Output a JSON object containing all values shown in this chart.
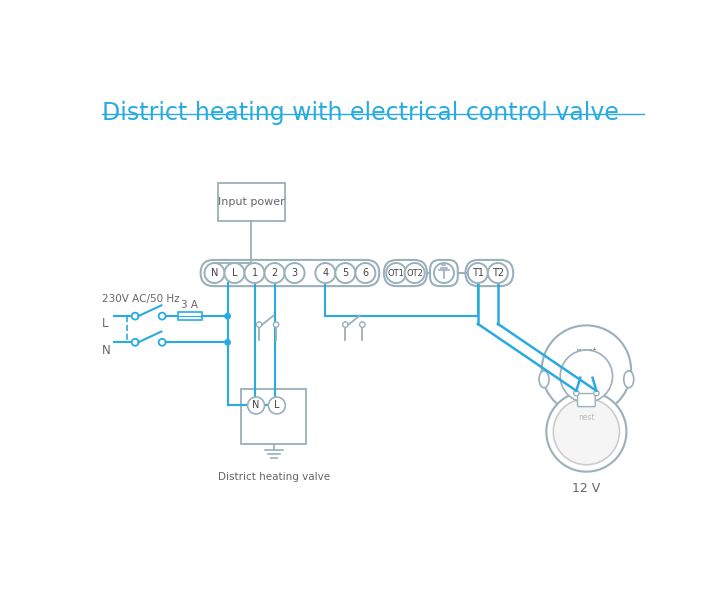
{
  "title": "District heating with electrical control valve",
  "title_color": "#29abe2",
  "title_fontsize": 17,
  "bg_color": "#ffffff",
  "wire_color": "#29abe2",
  "comp_color": "#9ab0bb",
  "text_color": "#666666",
  "dark_text": "#444444",
  "valve_label": "District heating valve",
  "nest_label": "12 V",
  "fuse_label": "3 A",
  "voltage_label": "230V AC/50 Hz",
  "L_label": "L",
  "N_label": "N",
  "input_power_label": "Input power"
}
